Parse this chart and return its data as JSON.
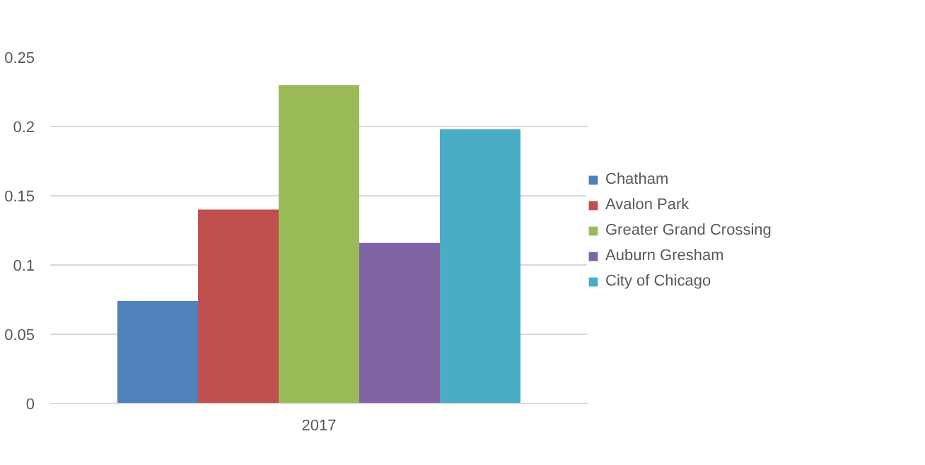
{
  "chart_data": {
    "type": "bar",
    "categories": [
      "2017"
    ],
    "series": [
      {
        "name": "Chatham",
        "color": "#4f81bd",
        "values": [
          0.074
        ]
      },
      {
        "name": "Avalon Park",
        "color": "#c0504d",
        "values": [
          0.14
        ]
      },
      {
        "name": "Greater Grand Crossing",
        "color": "#9bbb59",
        "values": [
          0.23
        ]
      },
      {
        "name": "Auburn Gresham",
        "color": "#8064a2",
        "values": [
          0.116
        ]
      },
      {
        "name": "City of Chicago",
        "color": "#4bacc6",
        "values": [
          0.198
        ]
      }
    ],
    "ylim": [
      0,
      0.25
    ],
    "yticks": [
      0,
      0.05,
      0.1,
      0.15,
      0.2,
      0.25
    ],
    "grid": "y",
    "legend": "right"
  }
}
